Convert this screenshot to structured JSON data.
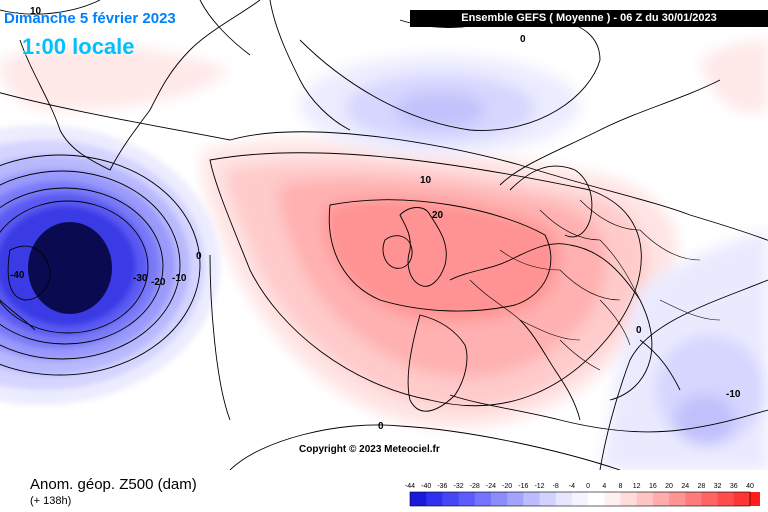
{
  "header": {
    "date": "Dimanche 5 février 2023",
    "local_time": "1:00 locale",
    "run_info": "Ensemble GEFS  ( Moyenne )  -  06 Z du 30/01/2023"
  },
  "copyright": "Copyright © 2023 Meteociel.fr",
  "footer": {
    "variable": "Anom. géop. Z500 (dam)",
    "lead_time": "(+ 138h)"
  },
  "legend": {
    "ticks": [
      "-44",
      "-40",
      "-36",
      "-32",
      "-28",
      "-24",
      "-20",
      "-16",
      "-12",
      "-8",
      "-4",
      "0",
      "4",
      "8",
      "12",
      "16",
      "20",
      "24",
      "28",
      "32",
      "36",
      "40"
    ],
    "colors": [
      "#1a1adc",
      "#3030f0",
      "#4646f6",
      "#5c5cfa",
      "#7474fc",
      "#8c8cfd",
      "#a4a4fe",
      "#bcbcfe",
      "#d2d2ff",
      "#e6e6ff",
      "#f4f4ff",
      "#ffffff",
      "#fff0f0",
      "#ffdcdc",
      "#ffc4c4",
      "#ffacac",
      "#ff9494",
      "#ff7c7c",
      "#ff6464",
      "#ff4c4c",
      "#ff3434",
      "#ff1c1c"
    ]
  },
  "contour_labels": [
    {
      "text": "-40"
    },
    {
      "text": "-30"
    },
    {
      "text": "-20"
    },
    {
      "text": "-10"
    },
    {
      "text": "0"
    },
    {
      "text": "10"
    },
    {
      "text": "0"
    },
    {
      "text": "10"
    },
    {
      "text": "20"
    },
    {
      "text": "0"
    },
    {
      "text": "0"
    },
    {
      "text": "-10"
    }
  ]
}
